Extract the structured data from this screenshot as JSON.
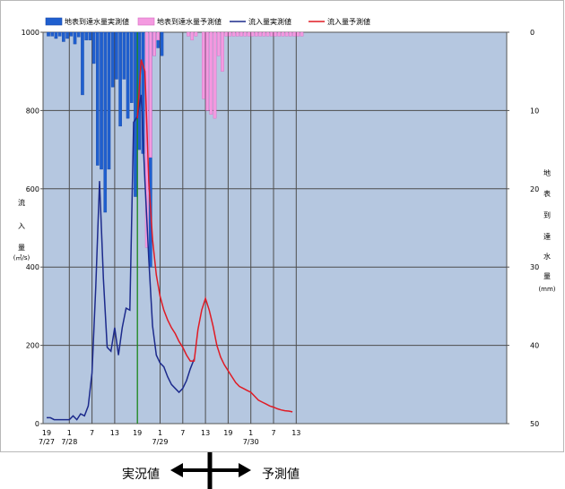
{
  "chart_data": {
    "type": "bar+line",
    "legend": [
      {
        "name": "地表到達水量実測値",
        "kind": "bar",
        "color": "#1f5fcf"
      },
      {
        "name": "地表到達水量予測値",
        "kind": "bar",
        "color": "#f49ae0"
      },
      {
        "name": "流入量実測値",
        "kind": "line",
        "color": "#1c2a8c"
      },
      {
        "name": "流入量予測値",
        "kind": "line",
        "color": "#e01b24"
      }
    ],
    "ylabel_left": "流入量(㎥/s)",
    "ylabel_left_chars": [
      "流",
      "入",
      "量",
      "(㎥/s)"
    ],
    "ylabel_right": "地表到達水量(mm)",
    "ylabel_right_chars": [
      "地",
      "表",
      "到",
      "達",
      "水",
      "量",
      "(mm)"
    ],
    "ylim_left": [
      0,
      1000
    ],
    "ylim_right": [
      0,
      50
    ],
    "yticks_left": [
      "0",
      "200",
      "400",
      "600",
      "800",
      "1000"
    ],
    "yticks_right": [
      "0",
      "10",
      "20",
      "30",
      "40",
      "50"
    ],
    "xlim_hours": [
      0,
      120
    ],
    "xticks": [
      {
        "h": 0,
        "label": "19",
        "date": "7/27"
      },
      {
        "h": 6,
        "label": "1",
        "date": "7/28"
      },
      {
        "h": 12,
        "label": "7",
        "date": ""
      },
      {
        "h": 18,
        "label": "13",
        "date": ""
      },
      {
        "h": 24,
        "label": "19",
        "date": ""
      },
      {
        "h": 30,
        "label": "1",
        "date": "7/29"
      },
      {
        "h": 36,
        "label": "7",
        "date": ""
      },
      {
        "h": 42,
        "label": "13",
        "date": ""
      },
      {
        "h": 48,
        "label": "19",
        "date": ""
      },
      {
        "h": 54,
        "label": "1",
        "date": "7/30"
      },
      {
        "h": 60,
        "label": "7",
        "date": ""
      },
      {
        "h": 66,
        "label": "13",
        "date": ""
      }
    ],
    "current_time_hour": 24,
    "rain_observed": [
      [
        0,
        0.5
      ],
      [
        1,
        0.5
      ],
      [
        2,
        0.8
      ],
      [
        3,
        0.5
      ],
      [
        4,
        1.2
      ],
      [
        5,
        0.8
      ],
      [
        6,
        0.5
      ],
      [
        7,
        1.5
      ],
      [
        8,
        0.6
      ],
      [
        9,
        8
      ],
      [
        10,
        1
      ],
      [
        11,
        1
      ],
      [
        12,
        4
      ],
      [
        13,
        17
      ],
      [
        14,
        17.5
      ],
      [
        15,
        23
      ],
      [
        16,
        17.5
      ],
      [
        17,
        7
      ],
      [
        18,
        6
      ],
      [
        19,
        12
      ],
      [
        20,
        6
      ],
      [
        21,
        11
      ],
      [
        22,
        9
      ],
      [
        23,
        21
      ],
      [
        24,
        15
      ],
      [
        25,
        15.5
      ],
      [
        26,
        10
      ],
      [
        27,
        30
      ],
      [
        28,
        3
      ],
      [
        29,
        2
      ],
      [
        30,
        3
      ]
    ],
    "rain_forecast": [
      [
        26,
        27.5
      ],
      [
        27,
        16
      ],
      [
        28,
        3
      ],
      [
        29,
        1
      ],
      [
        37,
        0.5
      ],
      [
        38,
        1
      ],
      [
        39,
        0.5
      ],
      [
        41,
        8.5
      ],
      [
        42,
        10
      ],
      [
        43,
        10.5
      ],
      [
        44,
        11
      ],
      [
        45,
        3
      ],
      [
        46,
        5
      ],
      [
        47,
        0.5
      ],
      [
        48,
        0.5
      ],
      [
        49,
        0.5
      ],
      [
        50,
        0.5
      ],
      [
        51,
        0.5
      ],
      [
        52,
        0.5
      ],
      [
        53,
        0.5
      ],
      [
        54,
        0.5
      ],
      [
        55,
        0.5
      ],
      [
        56,
        0.5
      ],
      [
        57,
        0.5
      ],
      [
        58,
        0.5
      ],
      [
        59,
        0.5
      ],
      [
        60,
        0.5
      ],
      [
        61,
        0.5
      ],
      [
        62,
        0.5
      ],
      [
        63,
        0.5
      ],
      [
        64,
        0.5
      ],
      [
        65,
        0.5
      ],
      [
        66,
        0.5
      ],
      [
        67,
        0.5
      ]
    ],
    "inflow_observed": [
      [
        0,
        15
      ],
      [
        1,
        15
      ],
      [
        2,
        10
      ],
      [
        3,
        10
      ],
      [
        4,
        10
      ],
      [
        5,
        10
      ],
      [
        6,
        10
      ],
      [
        7,
        20
      ],
      [
        8,
        10
      ],
      [
        9,
        25
      ],
      [
        10,
        20
      ],
      [
        11,
        45
      ],
      [
        12,
        130
      ],
      [
        13,
        350
      ],
      [
        14,
        620
      ],
      [
        15,
        370
      ],
      [
        16,
        195
      ],
      [
        17,
        185
      ],
      [
        18,
        245
      ],
      [
        19,
        175
      ],
      [
        20,
        245
      ],
      [
        21,
        295
      ],
      [
        22,
        290
      ],
      [
        23,
        770
      ],
      [
        24,
        785
      ],
      [
        25,
        840
      ],
      [
        26,
        620
      ],
      [
        27,
        420
      ],
      [
        28,
        250
      ],
      [
        29,
        175
      ],
      [
        30,
        155
      ],
      [
        31,
        145
      ],
      [
        32,
        120
      ],
      [
        33,
        100
      ],
      [
        34,
        90
      ],
      [
        35,
        80
      ],
      [
        36,
        90
      ],
      [
        37,
        110
      ],
      [
        38,
        140
      ],
      [
        39,
        165
      ]
    ],
    "inflow_forecast": [
      [
        24,
        780
      ],
      [
        25,
        930
      ],
      [
        26,
        900
      ],
      [
        27,
        620
      ],
      [
        28,
        470
      ],
      [
        29,
        380
      ],
      [
        30,
        325
      ],
      [
        31,
        290
      ],
      [
        32,
        265
      ],
      [
        33,
        245
      ],
      [
        34,
        230
      ],
      [
        35,
        210
      ],
      [
        36,
        195
      ],
      [
        37,
        175
      ],
      [
        38,
        160
      ],
      [
        39,
        160
      ],
      [
        40,
        240
      ],
      [
        41,
        290
      ],
      [
        42,
        320
      ],
      [
        43,
        290
      ],
      [
        44,
        250
      ],
      [
        45,
        200
      ],
      [
        46,
        170
      ],
      [
        47,
        150
      ],
      [
        48,
        135
      ],
      [
        49,
        120
      ],
      [
        50,
        105
      ],
      [
        51,
        95
      ],
      [
        52,
        90
      ],
      [
        53,
        85
      ],
      [
        54,
        80
      ],
      [
        55,
        70
      ],
      [
        56,
        60
      ],
      [
        57,
        55
      ],
      [
        58,
        50
      ],
      [
        59,
        45
      ],
      [
        60,
        42
      ],
      [
        61,
        38
      ],
      [
        62,
        35
      ],
      [
        63,
        33
      ],
      [
        64,
        32
      ],
      [
        65,
        30
      ]
    ]
  },
  "annotations": {
    "observed_label": "実況値",
    "forecast_label": "予測値"
  }
}
